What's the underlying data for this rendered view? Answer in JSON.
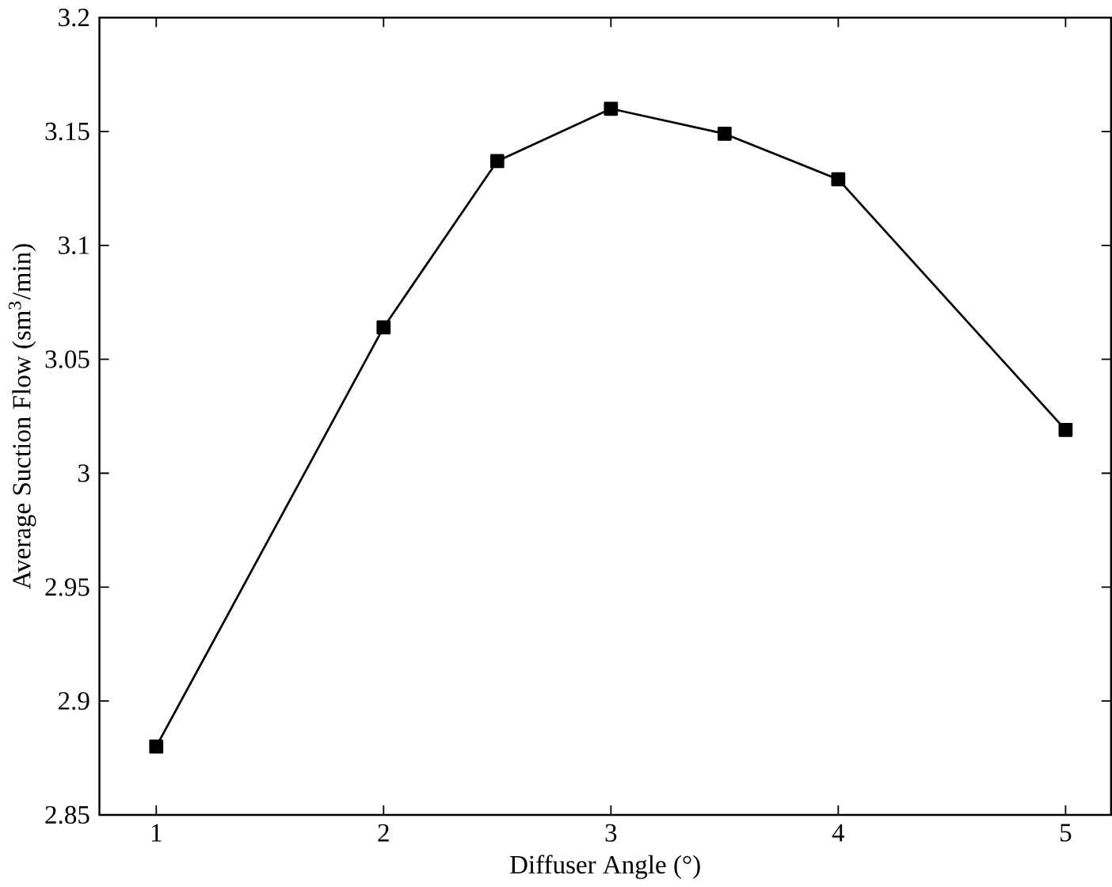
{
  "chart_data": {
    "type": "line",
    "xlabel": "Diffuser Angle (°)",
    "ylabel": "Average Suction Flow (sm$^{3}$/min)",
    "x": [
      1,
      2,
      2.5,
      3,
      3.5,
      4,
      5
    ],
    "series": [
      {
        "color": "#000000",
        "values": [
          2.88,
          3.064,
          3.137,
          3.16,
          3.149,
          3.129,
          3.019
        ]
      }
    ],
    "xlim": [
      0.75,
      5.2
    ],
    "ylim": [
      2.85,
      3.2
    ],
    "xticks": [
      1,
      2,
      3,
      4,
      5
    ],
    "yticks": [
      2.85,
      2.9,
      2.95,
      3,
      3.05,
      3.1,
      3.15,
      3.2
    ],
    "grid": false,
    "marker": "square",
    "line_style": "solid"
  }
}
